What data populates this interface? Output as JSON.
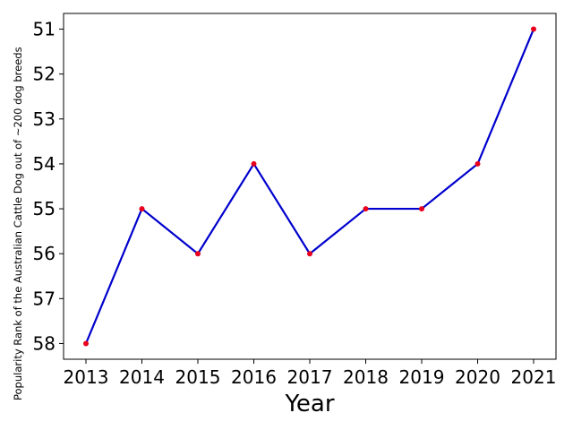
{
  "chart_data": {
    "type": "line",
    "xlabel": "Year",
    "ylabel": "Popularity Rank of the Australian Cattle Dog out of ~200 dog breeds",
    "x": [
      2013,
      2014,
      2015,
      2016,
      2017,
      2018,
      2019,
      2020,
      2021
    ],
    "series": [
      {
        "color": "#0000cd",
        "marker_color": "#e8001c",
        "values": [
          58,
          55,
          56,
          54,
          56,
          55,
          55,
          54,
          51
        ]
      }
    ],
    "xlim": [
      2012.6,
      2021.4
    ],
    "xticks": [
      2013,
      2014,
      2015,
      2016,
      2017,
      2018,
      2019,
      2020,
      2021
    ],
    "ylim": [
      58.35,
      50.65
    ],
    "yticks": [
      51,
      52,
      53,
      54,
      55,
      56,
      57,
      58
    ],
    "grid": false
  }
}
